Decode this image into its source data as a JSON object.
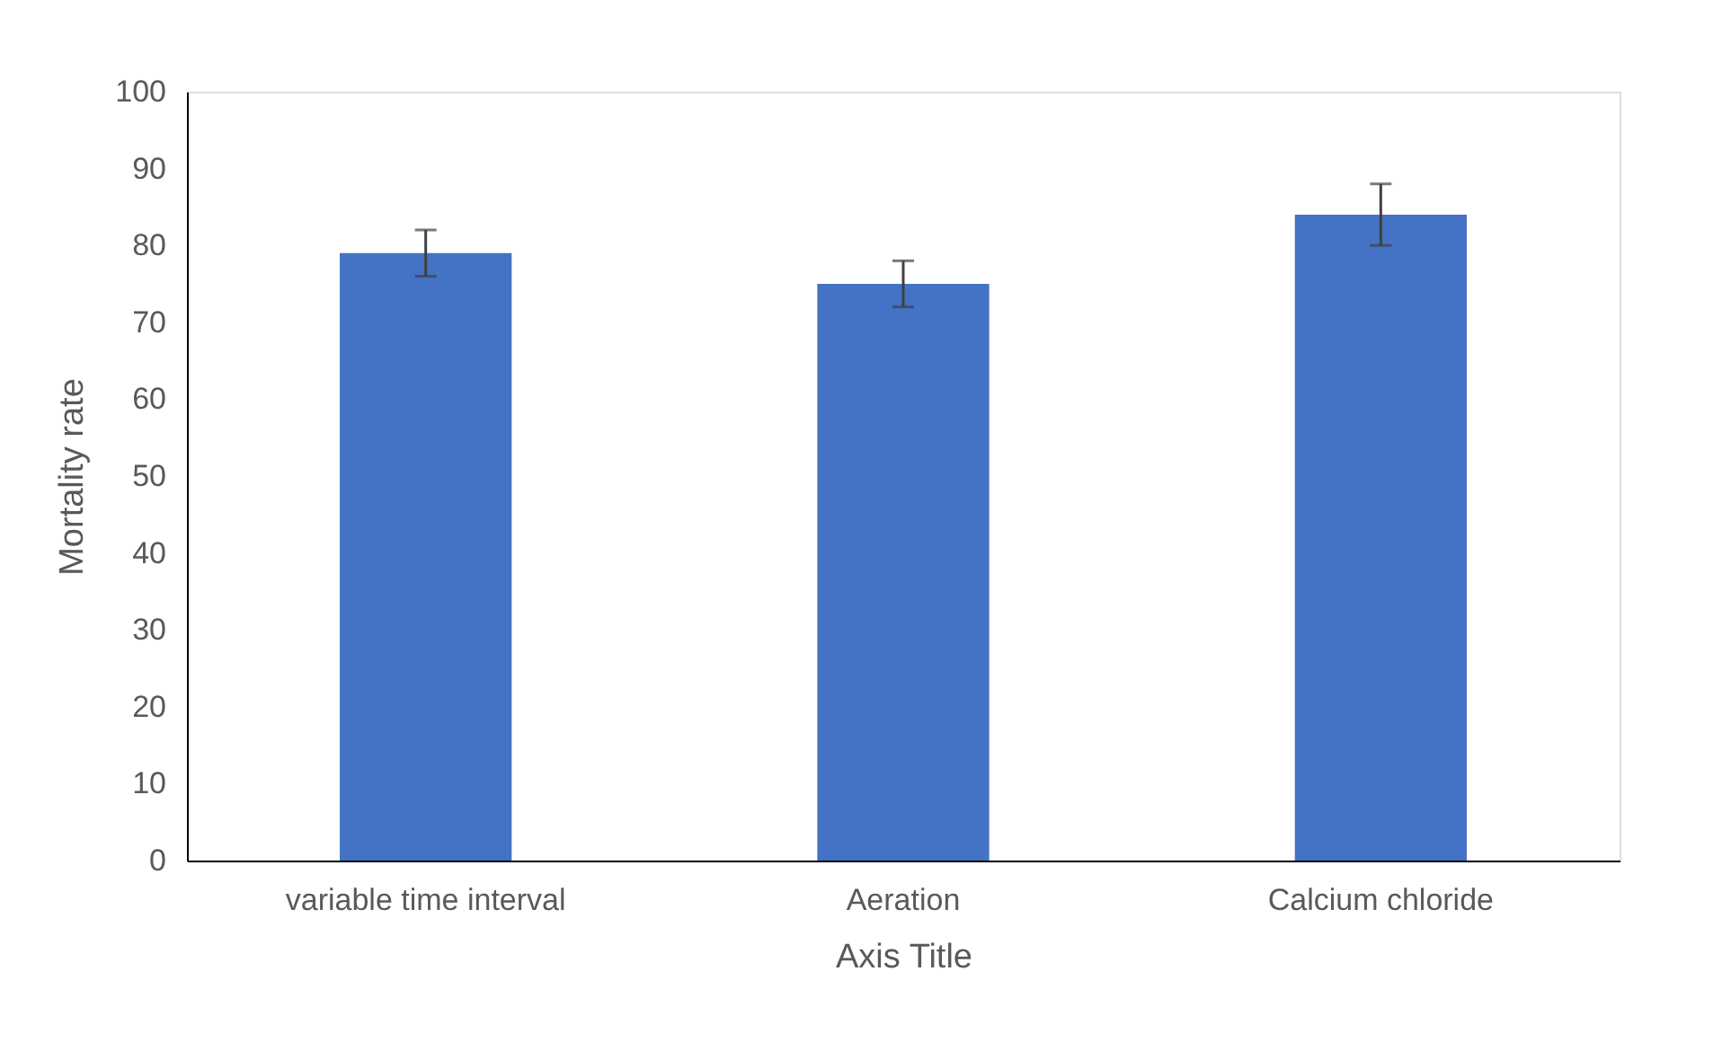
{
  "chart_data": {
    "type": "bar",
    "xlabel": "Axis Title",
    "ylabel": "Mortality rate",
    "categories": [
      "variable time interval",
      "Aeration",
      "Calcium chloride"
    ],
    "values": [
      79,
      75,
      84
    ],
    "errors": [
      3,
      3,
      4
    ],
    "color": "#4472c4",
    "ylim": [
      0,
      100
    ],
    "yticks": [
      0,
      10,
      20,
      30,
      40,
      50,
      60,
      70,
      80,
      90,
      100
    ],
    "grid": false
  }
}
